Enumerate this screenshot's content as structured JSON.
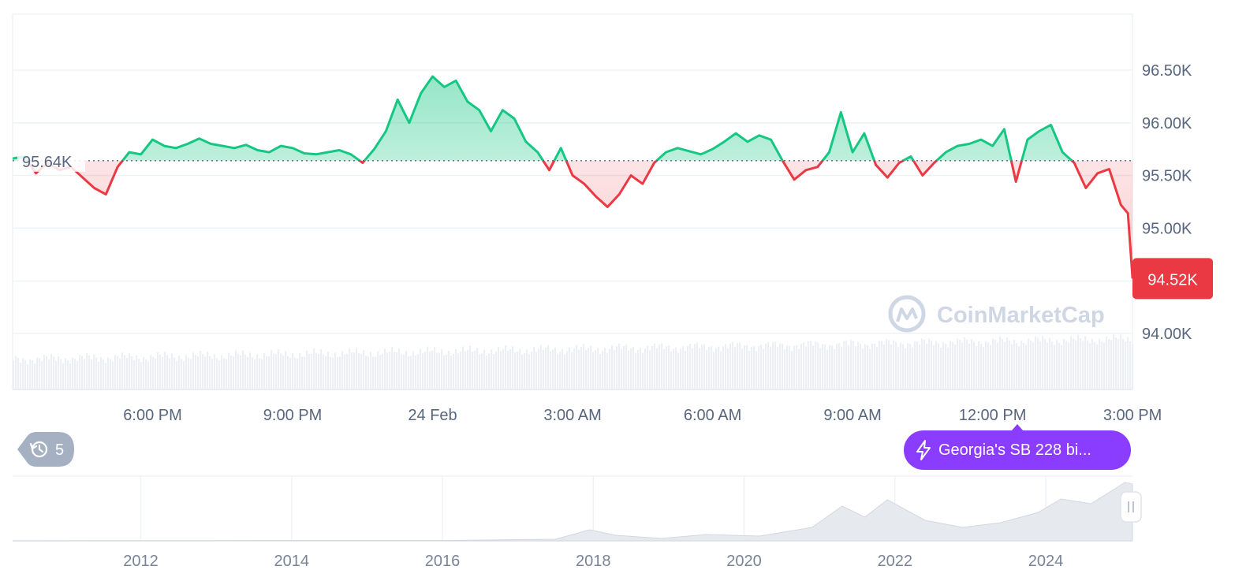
{
  "chart_data": {
    "type": "line",
    "y_ticks": [
      "96.50K",
      "96.00K",
      "95.50K",
      "95.00K",
      "94.00K"
    ],
    "y_tick_values": [
      96.5,
      96.0,
      95.5,
      95.0,
      94.0
    ],
    "ylim": [
      93.5,
      97.0
    ],
    "x_ticks": [
      "6:00 PM",
      "9:00 PM",
      "24 Feb",
      "3:00 AM",
      "6:00 AM",
      "9:00 AM",
      "12:00 PM",
      "3:00 PM"
    ],
    "x_tick_hours": [
      3,
      6,
      9,
      12,
      15,
      18,
      21,
      24
    ],
    "xlim": [
      0,
      24
    ],
    "reference_value": 95.64,
    "reference_label": "95.64K",
    "current_value": 94.52,
    "current_label": "94.52K",
    "grid": true,
    "series": [
      {
        "x": [
          0,
          0.25,
          0.5,
          0.75,
          1,
          1.25,
          1.5,
          1.75,
          2,
          2.25,
          2.5,
          2.75,
          3,
          3.25,
          3.5,
          3.75,
          4,
          4.25,
          4.5,
          4.75,
          5,
          5.25,
          5.5,
          5.75,
          6,
          6.25,
          6.5,
          6.75,
          7,
          7.25,
          7.5,
          7.75,
          8,
          8.25,
          8.5,
          8.75,
          9,
          9.25,
          9.5,
          9.75,
          10,
          10.25,
          10.5,
          10.75,
          11,
          11.25,
          11.5,
          11.75,
          12,
          12.25,
          12.5,
          12.75,
          13,
          13.25,
          13.5,
          13.75,
          14,
          14.25,
          14.5,
          14.75,
          15,
          15.25,
          15.5,
          15.75,
          16,
          16.25,
          16.5,
          16.75,
          17,
          17.25,
          17.5,
          17.75,
          18,
          18.25,
          18.5,
          18.75,
          19,
          19.25,
          19.5,
          19.75,
          20,
          20.25,
          20.5,
          20.75,
          21,
          21.25,
          21.5,
          21.75,
          22,
          22.25,
          22.5,
          22.75,
          23,
          23.25,
          23.5,
          23.75,
          23.9,
          24
        ],
        "values": [
          95.66,
          95.68,
          95.52,
          95.62,
          95.55,
          95.58,
          95.48,
          95.38,
          95.32,
          95.58,
          95.72,
          95.7,
          95.84,
          95.78,
          95.76,
          95.8,
          95.85,
          95.8,
          95.78,
          95.76,
          95.79,
          95.74,
          95.72,
          95.78,
          95.76,
          95.71,
          95.7,
          95.72,
          95.74,
          95.7,
          95.62,
          95.75,
          95.92,
          96.22,
          96.0,
          96.28,
          96.44,
          96.34,
          96.4,
          96.2,
          96.12,
          95.92,
          96.12,
          96.04,
          95.82,
          95.72,
          95.55,
          95.76,
          95.5,
          95.42,
          95.3,
          95.2,
          95.32,
          95.5,
          95.42,
          95.62,
          95.72,
          95.76,
          95.73,
          95.7,
          95.75,
          95.82,
          95.9,
          95.82,
          95.88,
          95.84,
          95.64,
          95.46,
          95.55,
          95.58,
          95.72,
          96.1,
          95.72,
          95.9,
          95.6,
          95.48,
          95.62,
          95.68,
          95.5,
          95.62,
          95.72,
          95.78,
          95.8,
          95.84,
          95.78,
          95.94,
          95.44,
          95.84,
          95.92,
          95.98,
          95.72,
          95.62,
          95.38,
          95.52,
          95.56,
          95.22,
          95.14,
          94.52
        ]
      }
    ]
  },
  "news": {
    "label": "Georgia's SB 228 bi..."
  },
  "history": {
    "count": "5"
  },
  "watermark": {
    "text": "CoinMarketCap"
  },
  "navigator": {
    "year_ticks": [
      "2012",
      "2014",
      "2016",
      "2018",
      "2020",
      "2022",
      "2024"
    ],
    "year_values": [
      2012,
      2014,
      2016,
      2018,
      2020,
      2022,
      2024
    ],
    "range": [
      2010.3,
      2025.15
    ]
  },
  "colors": {
    "up": "#16c784",
    "down": "#ea3943",
    "pill": "#8b3dff",
    "grid": "#eff2f5"
  }
}
